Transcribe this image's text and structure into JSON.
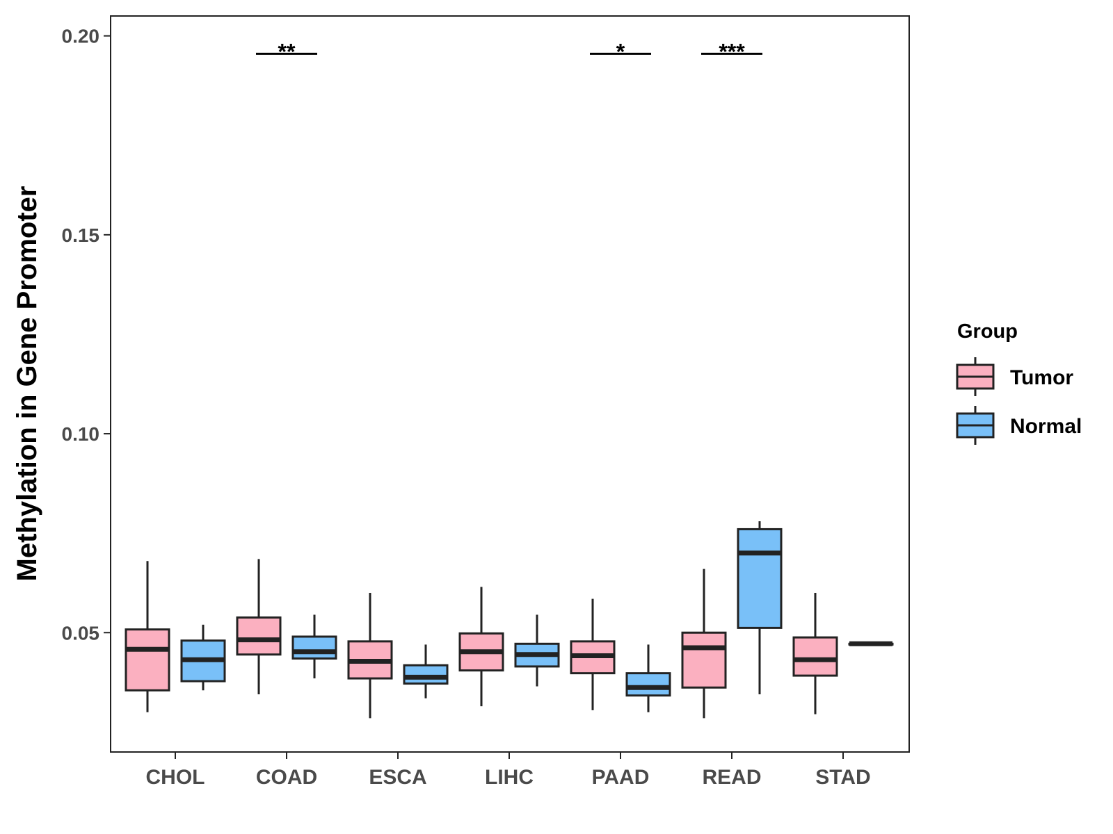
{
  "chart_data": {
    "type": "boxplot",
    "title": "",
    "xlabel": "",
    "ylabel": "Methylation in Gene Promoter",
    "ylim": [
      0.02,
      0.205
    ],
    "yticks": [
      "0.05",
      "0.10",
      "0.15",
      "0.20"
    ],
    "ytick_values": [
      0.05,
      0.1,
      0.15,
      0.2
    ],
    "categories": [
      "CHOL",
      "COAD",
      "ESCA",
      "LIHC",
      "PAAD",
      "READ",
      "STAD"
    ],
    "legend": {
      "title": "Group",
      "position": "right",
      "entries": [
        {
          "name": "Tumor",
          "color": "#FBB0C0"
        },
        {
          "name": "Normal",
          "color": "#79C0F8"
        }
      ]
    },
    "series": [
      {
        "name": "Tumor",
        "color": "#FBB0C0",
        "boxes": [
          {
            "category": "CHOL",
            "min": 0.03,
            "q1": 0.0355,
            "median": 0.0458,
            "q3": 0.0508,
            "max": 0.068
          },
          {
            "category": "COAD",
            "min": 0.0345,
            "q1": 0.0445,
            "median": 0.0482,
            "q3": 0.0538,
            "max": 0.0685
          },
          {
            "category": "ESCA",
            "min": 0.0285,
            "q1": 0.0385,
            "median": 0.0428,
            "q3": 0.0478,
            "max": 0.06
          },
          {
            "category": "LIHC",
            "min": 0.0315,
            "q1": 0.0405,
            "median": 0.0452,
            "q3": 0.0498,
            "max": 0.0615
          },
          {
            "category": "PAAD",
            "min": 0.0305,
            "q1": 0.0398,
            "median": 0.0442,
            "q3": 0.0478,
            "max": 0.0585
          },
          {
            "category": "READ",
            "min": 0.0285,
            "q1": 0.0362,
            "median": 0.0462,
            "q3": 0.05,
            "max": 0.066
          },
          {
            "category": "STAD",
            "min": 0.0295,
            "q1": 0.0392,
            "median": 0.0432,
            "q3": 0.0488,
            "max": 0.06
          }
        ]
      },
      {
        "name": "Normal",
        "color": "#79C0F8",
        "boxes": [
          {
            "category": "CHOL",
            "min": 0.0355,
            "q1": 0.0378,
            "median": 0.0432,
            "q3": 0.048,
            "max": 0.052
          },
          {
            "category": "COAD",
            "min": 0.0385,
            "q1": 0.0435,
            "median": 0.0452,
            "q3": 0.049,
            "max": 0.0545
          },
          {
            "category": "ESCA",
            "min": 0.0335,
            "q1": 0.0372,
            "median": 0.0388,
            "q3": 0.0418,
            "max": 0.047
          },
          {
            "category": "LIHC",
            "min": 0.0365,
            "q1": 0.0415,
            "median": 0.0445,
            "q3": 0.0472,
            "max": 0.0545
          },
          {
            "category": "PAAD",
            "min": 0.03,
            "q1": 0.0342,
            "median": 0.0362,
            "q3": 0.0398,
            "max": 0.047
          },
          {
            "category": "READ",
            "min": 0.0345,
            "q1": 0.0512,
            "median": 0.07,
            "q3": 0.076,
            "max": 0.078
          },
          {
            "category": "STAD",
            "min": 0.0472,
            "q1": 0.0472,
            "median": 0.0472,
            "q3": 0.0472,
            "max": 0.0472
          }
        ]
      }
    ],
    "significance": [
      {
        "category": "COAD",
        "label": "**",
        "y": 0.1955
      },
      {
        "category": "PAAD",
        "label": "*",
        "y": 0.1955
      },
      {
        "category": "READ",
        "label": "***",
        "y": 0.1955
      }
    ]
  }
}
